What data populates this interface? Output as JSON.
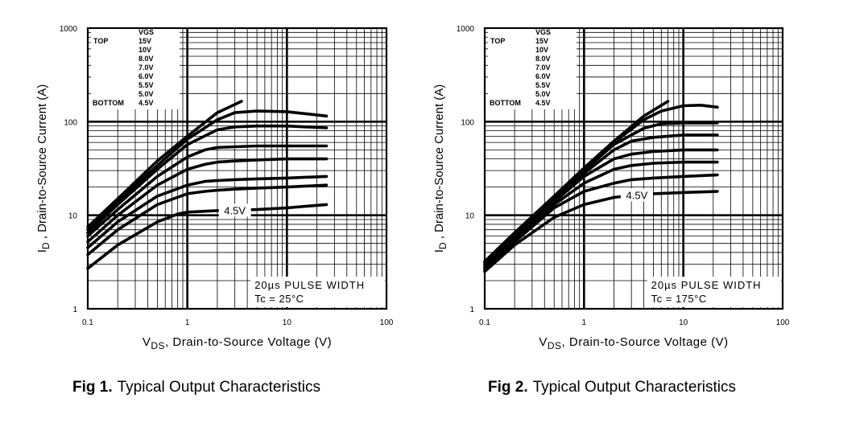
{
  "chart_data": [
    {
      "type": "line",
      "figure_label": "Fig 1.",
      "caption": "Typical Output Characteristics",
      "xlabel_main": "V",
      "xlabel_sub": "DS",
      "xlabel_rest": ", Drain-to-Source Voltage (V)",
      "ylabel_main": "I",
      "ylabel_sub": "D",
      "ylabel_rest": " , Drain-to-Source Current (A)",
      "x_scale": "log",
      "y_scale": "log",
      "xlim": [
        0.1,
        100
      ],
      "ylim": [
        1,
        1000
      ],
      "x_ticks": [
        "0.1",
        "1",
        "10",
        "100"
      ],
      "y_ticks": [
        "1",
        "10",
        "100",
        "1000"
      ],
      "grid": true,
      "legend_header": "VGS",
      "legend_top": "TOP",
      "legend_bottom": "BOTTOM",
      "legend_entries": [
        "15V",
        "10V",
        "8.0V",
        "7.0V",
        "6.0V",
        "5.5V",
        "5.0V",
        "4.5V"
      ],
      "annotation_curve": "4.5V",
      "note_line1": "20µs PULSE WIDTH",
      "note_line2": "Tc = 25°C",
      "series": [
        {
          "label": "15V",
          "x": [
            0.1,
            0.2,
            0.5,
            1,
            2,
            3.5
          ],
          "y": [
            7.5,
            15,
            38,
            70,
            125,
            165
          ]
        },
        {
          "label": "10V",
          "x": [
            0.1,
            0.2,
            0.5,
            1,
            2,
            3,
            5,
            10,
            25
          ],
          "y": [
            7,
            14,
            34,
            65,
            105,
            125,
            130,
            128,
            115
          ]
        },
        {
          "label": "8.0V",
          "x": [
            0.1,
            0.2,
            0.5,
            1,
            2,
            3,
            5,
            10,
            25
          ],
          "y": [
            6.5,
            13,
            31,
            57,
            82,
            88,
            90,
            90,
            86
          ]
        },
        {
          "label": "7.0V",
          "x": [
            0.1,
            0.2,
            0.5,
            1,
            1.5,
            2,
            3,
            5,
            10,
            25
          ],
          "y": [
            6,
            11.5,
            26,
            42,
            50,
            53,
            54,
            55,
            55,
            55
          ]
        },
        {
          "label": "6.0V",
          "x": [
            0.1,
            0.2,
            0.5,
            1,
            1.5,
            2,
            3,
            5,
            10,
            25
          ],
          "y": [
            5.2,
            10,
            21,
            31,
            35,
            37,
            38,
            39,
            40,
            40
          ]
        },
        {
          "label": "5.5V",
          "x": [
            0.1,
            0.2,
            0.5,
            1,
            1.5,
            2,
            3,
            5,
            10,
            25
          ],
          "y": [
            4.5,
            8.5,
            16,
            21,
            23,
            23.5,
            24,
            24.5,
            25,
            26
          ]
        },
        {
          "label": "5.0V",
          "x": [
            0.1,
            0.2,
            0.5,
            1,
            1.5,
            2,
            3,
            5,
            10,
            25
          ],
          "y": [
            3.8,
            7,
            13,
            17,
            18,
            18.5,
            19,
            19.5,
            20,
            21
          ]
        },
        {
          "label": "4.5V",
          "x": [
            0.1,
            0.2,
            0.5,
            0.8,
            1,
            2,
            3,
            5,
            10,
            25
          ],
          "y": [
            2.7,
            4.8,
            8.5,
            10.3,
            10.8,
            11.2,
            11.3,
            11.5,
            12,
            13
          ]
        }
      ]
    },
    {
      "type": "line",
      "figure_label": "Fig 2.",
      "caption": "Typical Output Characteristics",
      "xlabel_main": "V",
      "xlabel_sub": "DS",
      "xlabel_rest": ", Drain-to-Source Voltage (V)",
      "ylabel_main": "I",
      "ylabel_sub": "D",
      "ylabel_rest": " , Drain-to-Source Current (A)",
      "x_scale": "log",
      "y_scale": "log",
      "xlim": [
        0.1,
        100
      ],
      "ylim": [
        1,
        1000
      ],
      "x_ticks": [
        "0.1",
        "1",
        "10",
        "100"
      ],
      "y_ticks": [
        "1",
        "10",
        "100",
        "1000"
      ],
      "grid": true,
      "legend_header": "VGS",
      "legend_top": "TOP",
      "legend_bottom": "BOTTOM",
      "legend_entries": [
        "15V",
        "10V",
        "8.0V",
        "7.0V",
        "6.0V",
        "5.5V",
        "5.0V",
        "4.5V"
      ],
      "annotation_curve": "4.5V",
      "note_line1": "20µs PULSE WIDTH",
      "note_line2": "Tc = 175°C",
      "series": [
        {
          "label": "15V",
          "x": [
            0.1,
            0.2,
            0.5,
            1,
            2,
            4,
            7
          ],
          "y": [
            3.2,
            6.5,
            16,
            32,
            62,
            115,
            165
          ]
        },
        {
          "label": "10V",
          "x": [
            0.1,
            0.2,
            0.5,
            1,
            2,
            4,
            6,
            10,
            15,
            22
          ],
          "y": [
            3.1,
            6.3,
            15.5,
            31,
            60,
            105,
            130,
            148,
            150,
            143
          ]
        },
        {
          "label": "8.0V",
          "x": [
            0.1,
            0.2,
            0.5,
            1,
            2,
            4,
            6,
            10,
            22
          ],
          "y": [
            3,
            6.1,
            15,
            30,
            57,
            85,
            95,
            97,
            97
          ]
        },
        {
          "label": "7.0V",
          "x": [
            0.1,
            0.2,
            0.5,
            1,
            2,
            3,
            5,
            10,
            22
          ],
          "y": [
            2.9,
            5.9,
            14.5,
            28,
            50,
            62,
            68,
            72,
            72
          ]
        },
        {
          "label": "6.0V",
          "x": [
            0.1,
            0.2,
            0.5,
            1,
            2,
            3,
            5,
            10,
            22
          ],
          "y": [
            2.8,
            5.7,
            14,
            26,
            40,
            45,
            48,
            50,
            50
          ]
        },
        {
          "label": "5.5V",
          "x": [
            0.1,
            0.2,
            0.5,
            1,
            2,
            3,
            5,
            10,
            22
          ],
          "y": [
            2.7,
            5.5,
            13,
            22,
            31,
            34,
            36,
            37,
            37
          ]
        },
        {
          "label": "5.0V",
          "x": [
            0.1,
            0.2,
            0.5,
            1,
            2,
            3,
            5,
            10,
            22
          ],
          "y": [
            2.6,
            5.2,
            12,
            18,
            22,
            24,
            25,
            26,
            27
          ]
        },
        {
          "label": "4.5V",
          "x": [
            0.1,
            0.2,
            0.5,
            1,
            2,
            3,
            5,
            10,
            22
          ],
          "y": [
            2.5,
            4.8,
            9.5,
            13,
            15.5,
            16.3,
            17,
            17.5,
            18
          ]
        }
      ]
    }
  ]
}
